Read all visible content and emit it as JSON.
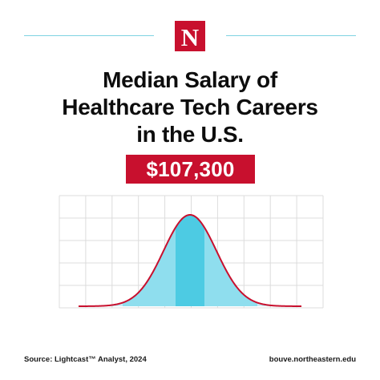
{
  "logo": {
    "letter": "N",
    "color": "#c8102e"
  },
  "headline": {
    "lines": [
      "Median Salary of",
      "Healthcare Tech Careers",
      "in the U.S."
    ]
  },
  "salary": {
    "value": "$107,300",
    "box_color": "#c8102e"
  },
  "chart_data": {
    "type": "area",
    "shape": "normal-distribution",
    "grid": true,
    "curve_color": "#c8102e",
    "fill_colors": [
      "#c9eef6",
      "#8fdeee",
      "#4dcbe3"
    ]
  },
  "footer": {
    "source": "Source: Lightcast™ Analyst, 2024",
    "url": "bouve.northeastern.edu"
  },
  "colors": {
    "accent_line": "#7fd3e1"
  }
}
